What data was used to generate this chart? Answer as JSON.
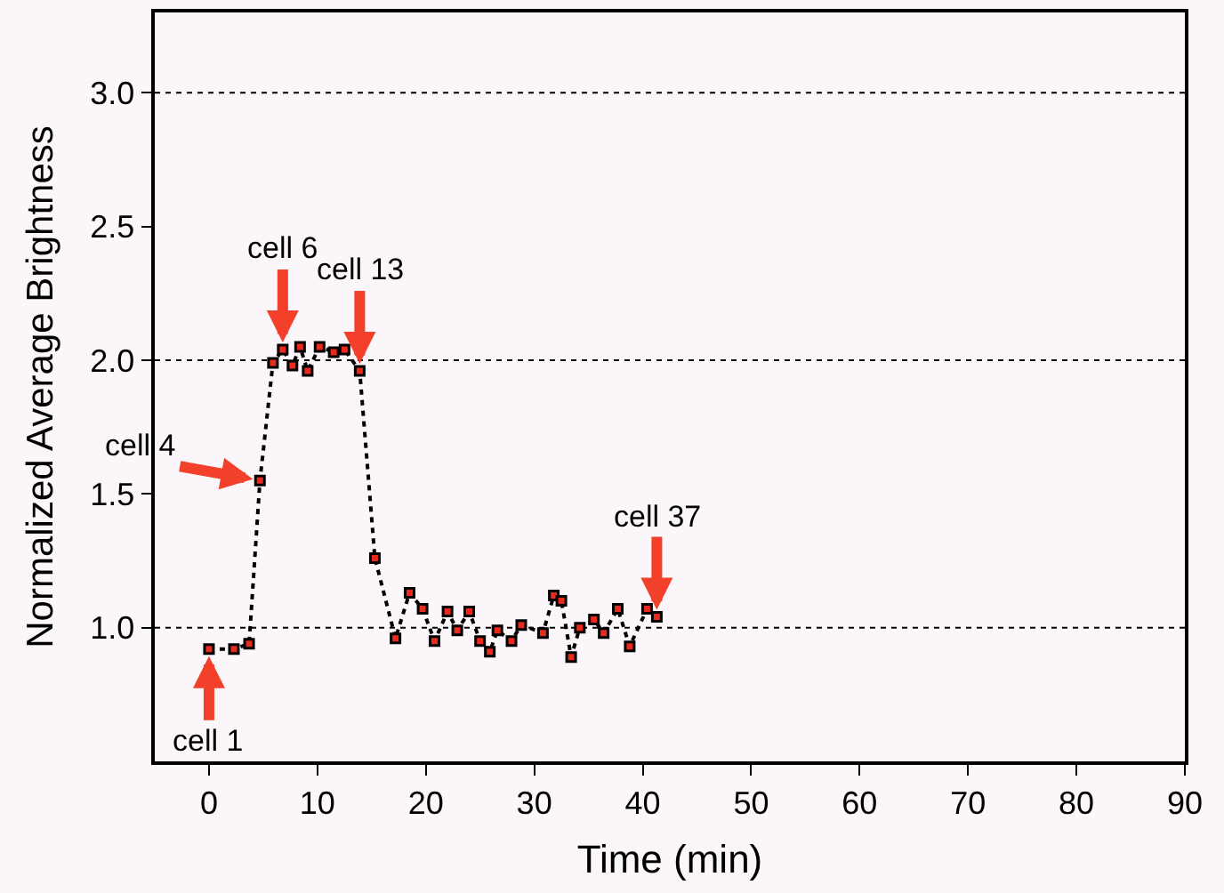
{
  "chart_data": {
    "type": "line",
    "xlabel": "Time (min)",
    "ylabel": "Normalized Average Brightness",
    "x": [
      0,
      2.3,
      3.7,
      4.7,
      5.9,
      6.8,
      7.7,
      8.4,
      9.1,
      10.2,
      11.5,
      12.5,
      13.9,
      15.3,
      17.2,
      18.5,
      19.7,
      20.8,
      22.0,
      22.9,
      24.0,
      25.0,
      25.9,
      26.6,
      27.9,
      28.8,
      30.8,
      31.8,
      32.5,
      33.4,
      34.2,
      35.5,
      36.4,
      37.7,
      38.8,
      40.4,
      41.3
    ],
    "series": [
      {
        "color": "#e8291c",
        "values": [
          0.92,
          0.92,
          0.94,
          1.55,
          1.99,
          2.04,
          1.98,
          2.05,
          1.96,
          2.05,
          2.03,
          2.04,
          1.96,
          1.26,
          0.96,
          1.13,
          1.07,
          0.95,
          1.06,
          0.99,
          1.06,
          0.95,
          0.91,
          0.99,
          0.95,
          1.01,
          0.98,
          1.12,
          1.1,
          0.89,
          1.0,
          1.03,
          0.98,
          1.07,
          0.93,
          1.07,
          1.04
        ]
      }
    ],
    "line_style": "dotted",
    "marker": "square",
    "xlim": [
      -5,
      90
    ],
    "xticks": [
      0,
      10,
      20,
      30,
      40,
      50,
      60,
      70,
      80,
      90
    ],
    "ylim": [
      0.5,
      3.3
    ],
    "yticks": [
      {
        "value": 1,
        "label": "1.0"
      },
      1.5,
      {
        "value": 2,
        "label": "2.0"
      },
      2.5,
      {
        "value": 3,
        "label": "3.0"
      }
    ],
    "ref_lines": [
      {
        "axis": "y",
        "value": 1,
        "line_style": "dotted"
      },
      {
        "axis": "y",
        "value": 2,
        "line_style": "dotted"
      },
      {
        "axis": "y",
        "value": 3,
        "line_style": "dotted"
      }
    ],
    "grid": false,
    "legend": false,
    "annotations": [
      {
        "text": "cell 1",
        "x": 0,
        "y": 0.92
      },
      {
        "text": "cell 4",
        "x": 4.7,
        "y": 1.55
      },
      {
        "text": "cell 6",
        "x": 6.8,
        "y": 2.04
      },
      {
        "text": "cell 13",
        "x": 13.9,
        "y": 1.96
      },
      {
        "text": "cell 37",
        "x": 41.3,
        "y": 1.04
      }
    ]
  }
}
